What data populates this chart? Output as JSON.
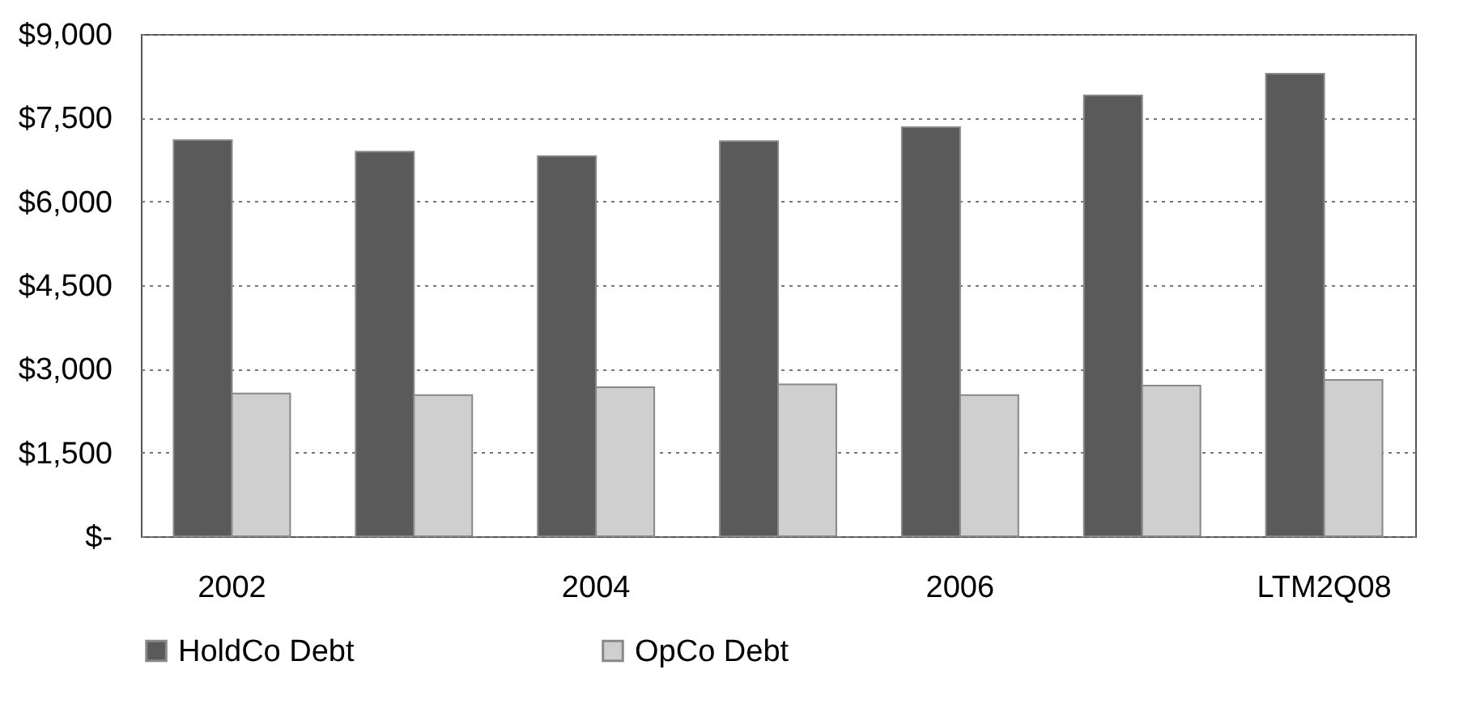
{
  "chart_data": {
    "type": "bar",
    "categories": [
      "2002",
      null,
      "2004",
      null,
      "2006",
      null,
      "LTM2Q08"
    ],
    "series": [
      {
        "name": "HoldCo Debt",
        "color": "#5a5a5a",
        "values": [
          7100,
          6890,
          6810,
          7080,
          7330,
          7900,
          8290
        ]
      },
      {
        "name": "OpCo Debt",
        "color": "#cfcfcf",
        "values": [
          2560,
          2530,
          2670,
          2720,
          2530,
          2700,
          2800
        ]
      }
    ],
    "ylim": [
      0,
      9000
    ],
    "yticks": [
      {
        "value": 0,
        "label": "$-"
      },
      {
        "value": 1500,
        "label": "$1,500"
      },
      {
        "value": 3000,
        "label": "$3,000"
      },
      {
        "value": 4500,
        "label": "$4,500"
      },
      {
        "value": 6000,
        "label": "$6,000"
      },
      {
        "value": 7500,
        "label": "$7,500"
      },
      {
        "value": 9000,
        "label": "$9,000"
      }
    ],
    "grid": "y",
    "legend": "bottom"
  }
}
